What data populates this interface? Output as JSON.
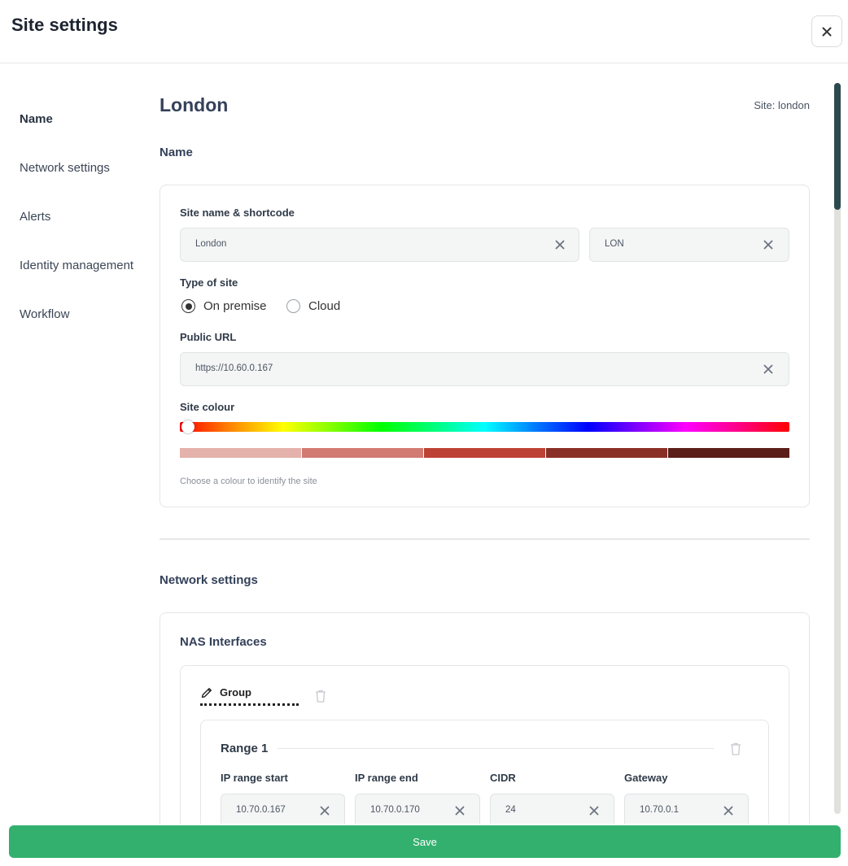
{
  "header": {
    "title": "Site settings",
    "close_icon": "close-icon"
  },
  "sidebar": {
    "items": [
      {
        "label": "Name",
        "active": true
      },
      {
        "label": "Network settings",
        "active": false
      },
      {
        "label": "Alerts",
        "active": false
      },
      {
        "label": "Identity management",
        "active": false
      },
      {
        "label": "Workflow",
        "active": false
      }
    ]
  },
  "main": {
    "site_title": "London",
    "site_id": "Site: london",
    "name_section": {
      "heading": "Name",
      "site_name_label": "Site name & shortcode",
      "site_name_value": "London",
      "shortcode_value": "LON",
      "type_label": "Type of site",
      "type_options": [
        {
          "label": "On premise",
          "selected": true
        },
        {
          "label": "Cloud",
          "selected": false
        }
      ],
      "url_label": "Public URL",
      "url_value": "https://10.60.0.167",
      "colour_label": "Site colour",
      "hue_value": 0,
      "swatch_colors": [
        "#e4b1ab",
        "#d17b73",
        "#bd4234",
        "#8a2f25",
        "#5a1f18"
      ],
      "colour_help": "Choose a colour to identify the site"
    },
    "network_section": {
      "heading": "Network settings",
      "nas_heading": "NAS Interfaces",
      "group_label": "Group",
      "range": {
        "title": "Range 1",
        "fields": [
          {
            "label": "IP range start",
            "value": "10.70.0.167"
          },
          {
            "label": "IP range end",
            "value": "10.70.0.170"
          },
          {
            "label": "CIDR",
            "value": "24"
          },
          {
            "label": "Gateway",
            "value": "10.70.0.1"
          }
        ]
      }
    }
  },
  "footer": {
    "save_label": "Save"
  },
  "colors": {
    "accent": "#33b06e",
    "scroll_thumb": "#2c4a4e"
  }
}
